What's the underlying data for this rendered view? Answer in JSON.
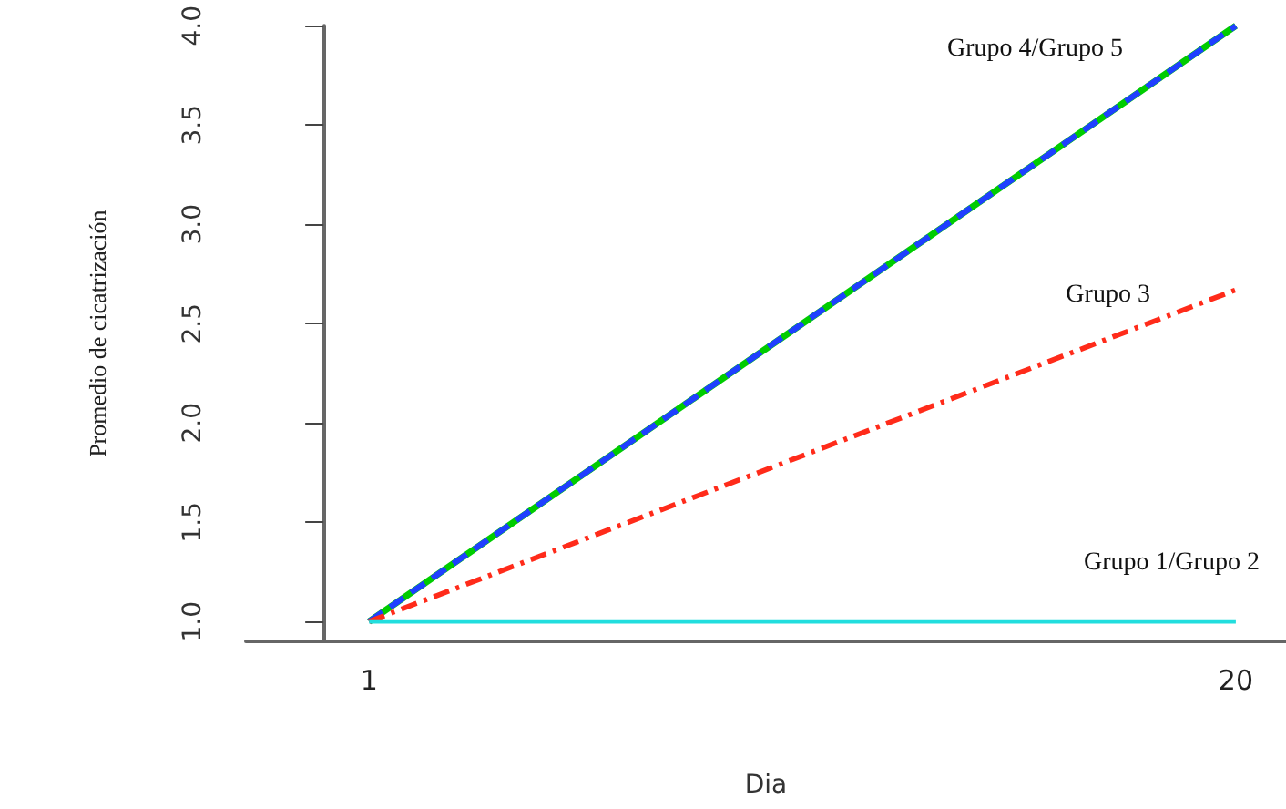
{
  "chart_data": {
    "type": "line",
    "xlabel": "Dia",
    "ylabel": "Promedio de cicatrización",
    "x": [
      1,
      20
    ],
    "xlim": [
      -1.7,
      21.1
    ],
    "xticks": [
      1,
      20
    ],
    "ylim": [
      0.9,
      4.0
    ],
    "yticks": [
      {
        "value": 1,
        "label": "1.0"
      },
      {
        "value": 1.5,
        "label": "1.5"
      },
      {
        "value": 2,
        "label": "2.0"
      },
      {
        "value": 2.5,
        "label": "2.5"
      },
      {
        "value": 3,
        "label": "3.0"
      },
      {
        "value": 3.5,
        "label": "3.5"
      },
      {
        "value": 4,
        "label": "4.0"
      }
    ],
    "grid": false,
    "marker": "none",
    "series": [
      {
        "color": "#00cc00",
        "values": [
          1,
          4
        ],
        "line_style": "solid"
      },
      {
        "name": "Grupo 4/Grupo 5",
        "color": "#1f3fff",
        "values": [
          1,
          4
        ],
        "line_style": "dashed"
      },
      {
        "name": "Grupo 3",
        "color": "#ff2b1a",
        "values": [
          1,
          2.67
        ],
        "line_style": "dashdot"
      },
      {
        "name": "Grupo 1/Grupo 2",
        "color": "#22dede",
        "values": [
          1,
          1
        ],
        "line_style": "solid"
      }
    ]
  }
}
